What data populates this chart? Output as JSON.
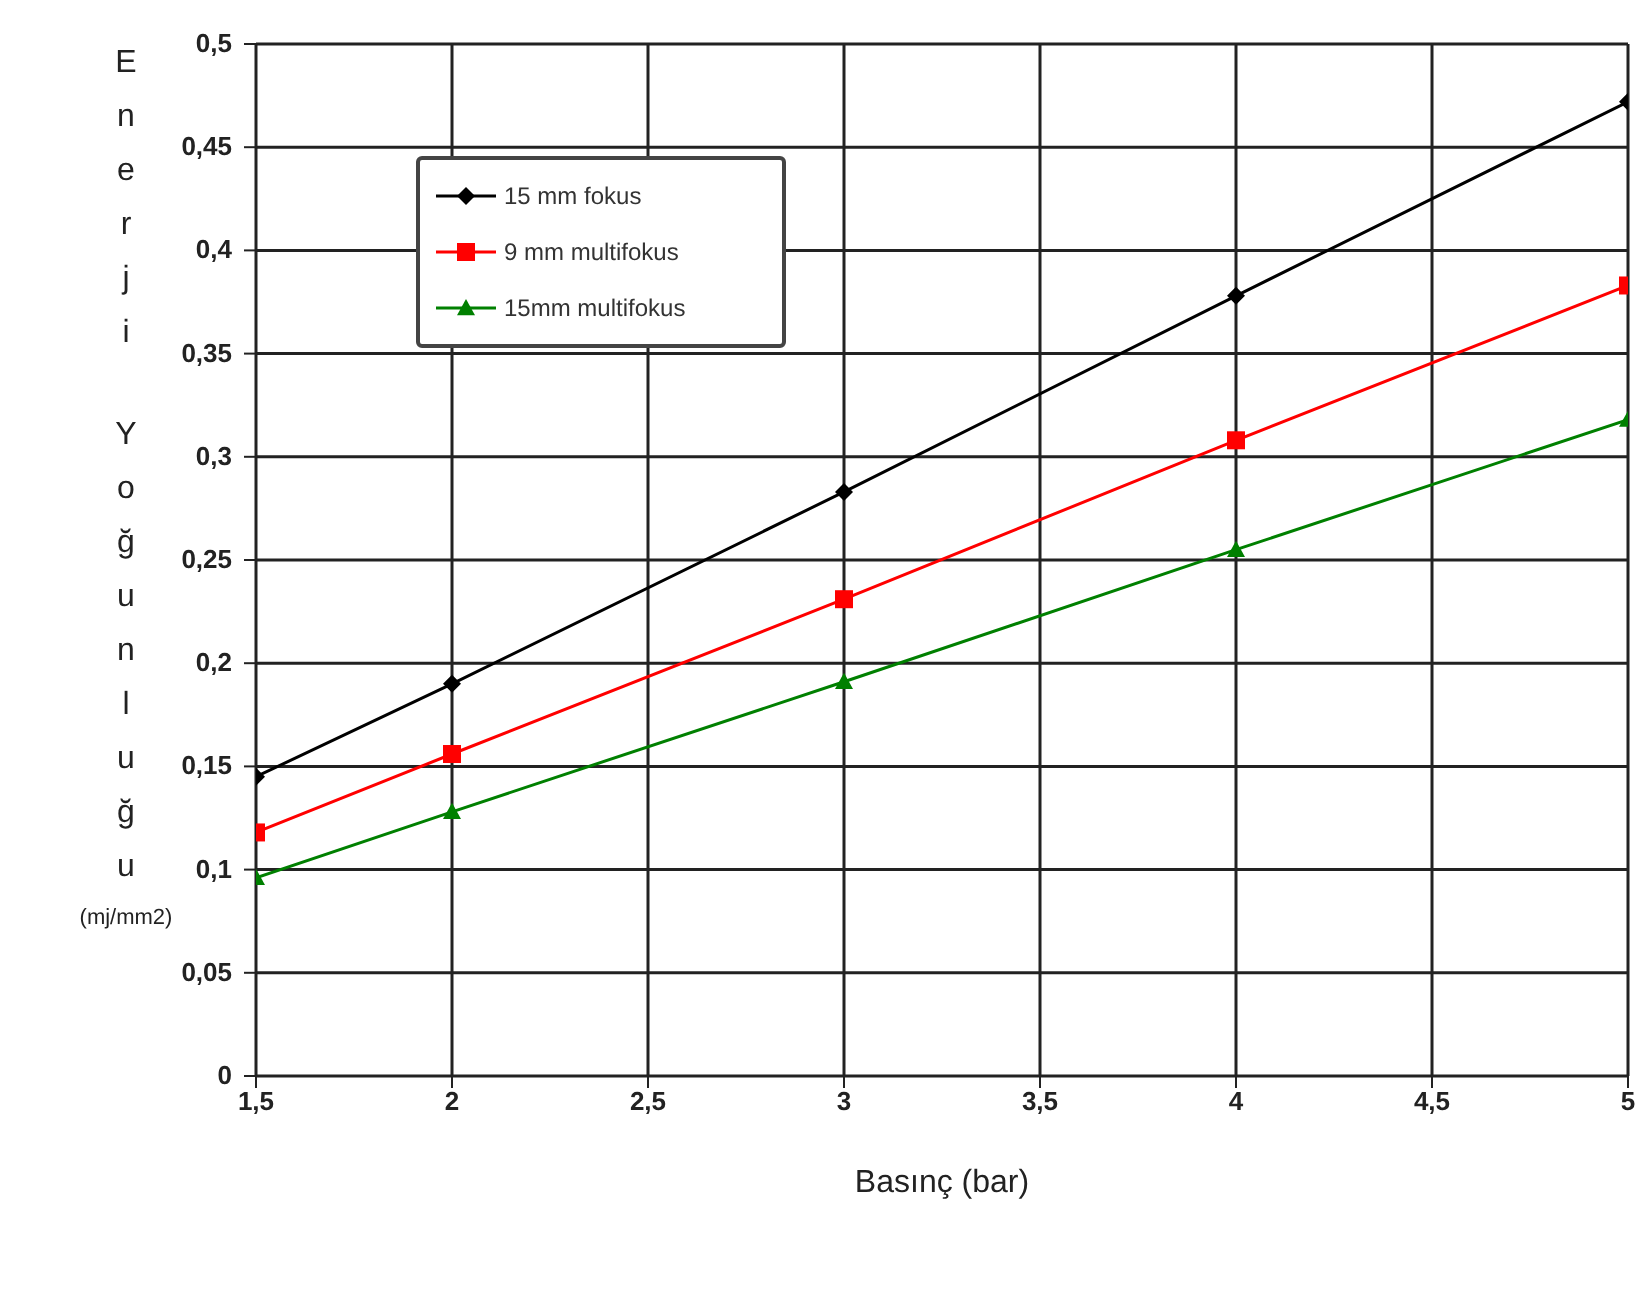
{
  "chart_data": {
    "type": "line",
    "xlabel": "Basınç (bar)",
    "ylabel": "Enerji Yoğunluğu (mj/mm2)",
    "x": [
      1.5,
      2,
      3,
      4,
      5
    ],
    "series": [
      {
        "name": "15 mm fokus",
        "color": "#000000",
        "marker": "diamond",
        "values": [
          0.145,
          0.19,
          0.283,
          0.378,
          0.472
        ]
      },
      {
        "name": "9 mm multifokus",
        "color": "#ff0000",
        "marker": "square",
        "values": [
          0.118,
          0.156,
          0.231,
          0.308,
          0.383
        ]
      },
      {
        "name": "15mm multifokus",
        "color": "#008000",
        "marker": "triangle",
        "values": [
          0.096,
          0.128,
          0.191,
          0.255,
          0.318
        ]
      }
    ],
    "xlim": [
      1.5,
      5
    ],
    "xticks": [
      {
        "value": 1.5,
        "label": "1,5"
      },
      2,
      {
        "value": 2.5,
        "label": "2,5"
      },
      3,
      {
        "value": 3.5,
        "label": "3,5"
      },
      4,
      {
        "value": 4.5,
        "label": "4,5"
      },
      5
    ],
    "ylim": [
      0,
      0.5
    ],
    "yticks": [
      0,
      {
        "value": 0.05,
        "label": "0,05"
      },
      {
        "value": 0.1,
        "label": "0,1"
      },
      {
        "value": 0.15,
        "label": "0,15"
      },
      {
        "value": 0.2,
        "label": "0,2"
      },
      {
        "value": 0.25,
        "label": "0,25"
      },
      {
        "value": 0.3,
        "label": "0,3"
      },
      {
        "value": 0.35,
        "label": "0,35"
      },
      {
        "value": 0.4,
        "label": "0,4"
      },
      {
        "value": 0.45,
        "label": "0,45"
      },
      {
        "value": 0.5,
        "label": "0,5"
      }
    ],
    "grid": true,
    "legend": "top left",
    "line_style": "solid"
  }
}
